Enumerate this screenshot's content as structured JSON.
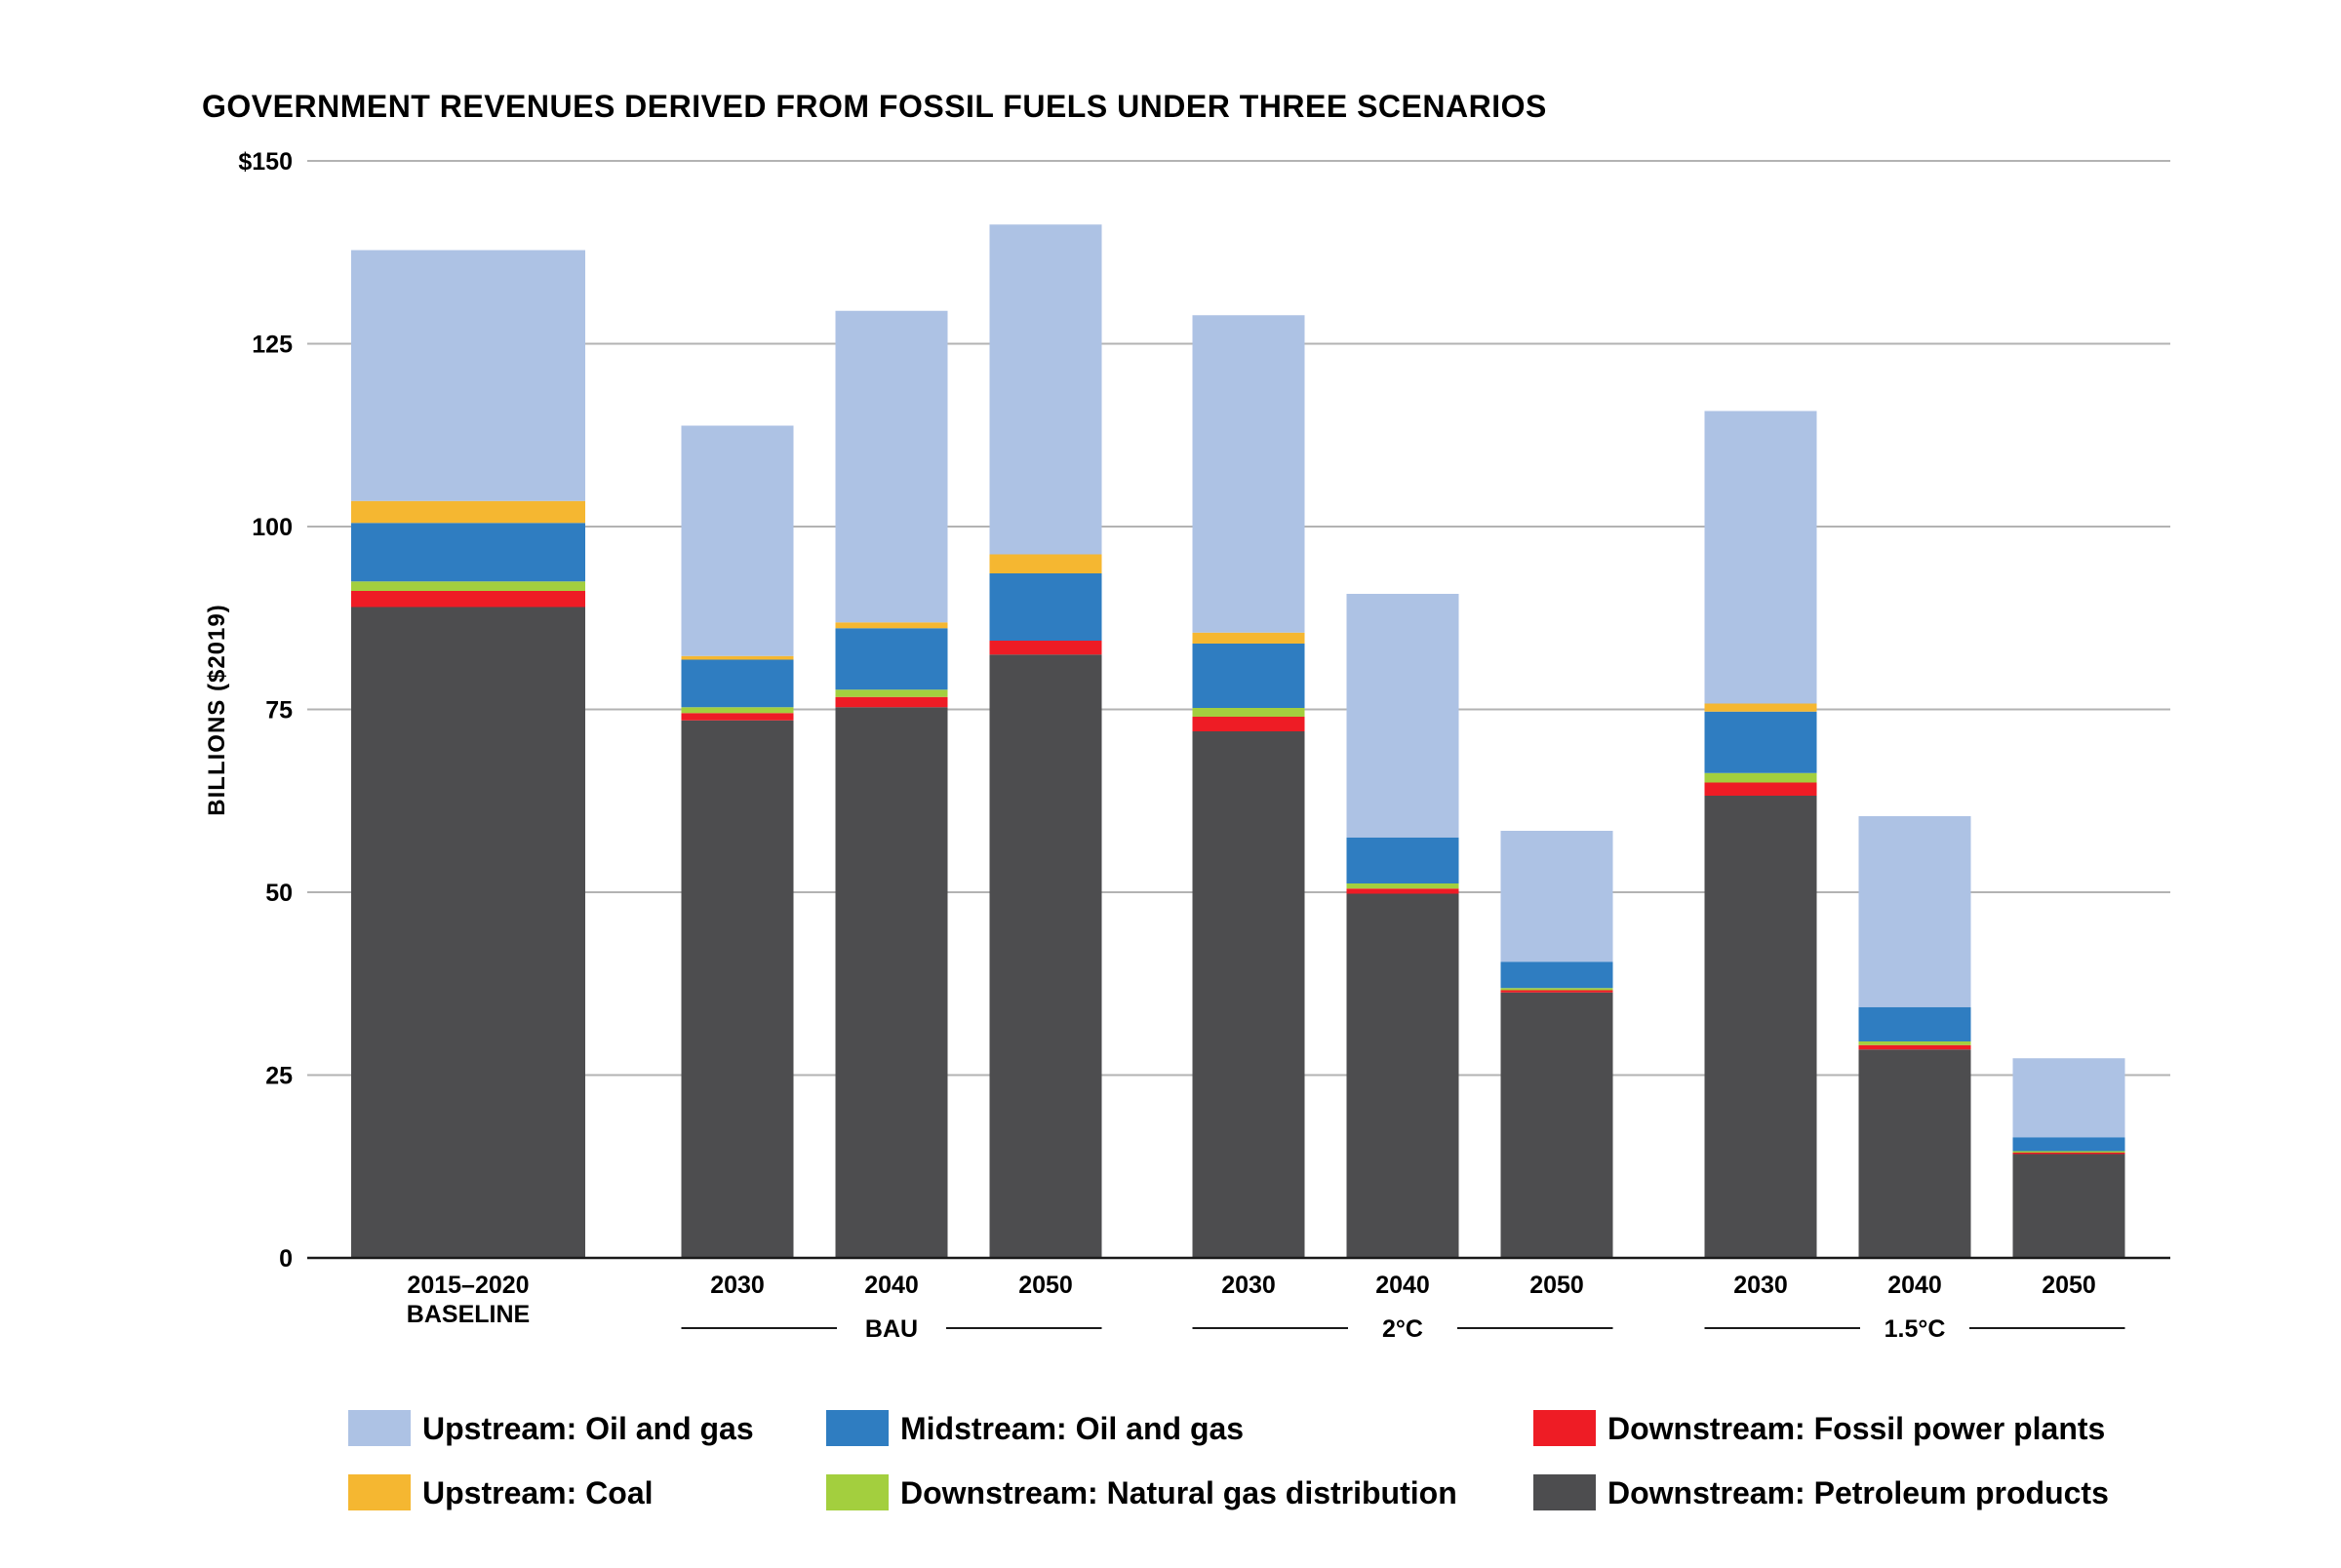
{
  "chart_data": {
    "type": "bar",
    "stacked": true,
    "title": "GOVERNMENT REVENUES DERIVED FROM FOSSIL FUELS UNDER THREE SCENARIOS",
    "ylabel": "BILLIONS ($2019)",
    "xlabel": "",
    "ylim": [
      0,
      150
    ],
    "yticks": [
      "$150",
      "125",
      "100",
      "75",
      "50",
      "25",
      "0"
    ],
    "yticks_values": [
      150,
      125,
      100,
      75,
      50,
      25,
      0
    ],
    "grid": true,
    "categories": [
      {
        "label": "2015–2020",
        "label2": "BASELINE",
        "group": ""
      },
      {
        "label": "2030",
        "label2": "",
        "group": "BAU"
      },
      {
        "label": "2040",
        "label2": "",
        "group": "BAU"
      },
      {
        "label": "2050",
        "label2": "",
        "group": "BAU"
      },
      {
        "label": "2030",
        "label2": "",
        "group": "2°C"
      },
      {
        "label": "2040",
        "label2": "",
        "group": "2°C"
      },
      {
        "label": "2050",
        "label2": "",
        "group": "2°C"
      },
      {
        "label": "2030",
        "label2": "",
        "group": "1.5°C"
      },
      {
        "label": "2040",
        "label2": "",
        "group": "1.5°C"
      },
      {
        "label": "2050",
        "label2": "",
        "group": "1.5°C"
      }
    ],
    "groups": [
      "BAU",
      "2°C",
      "1.5°C"
    ],
    "series": [
      {
        "name": "Downstream: Petroleum products",
        "color": "#4d4d4f",
        "values": [
          89.0,
          73.5,
          75.3,
          82.5,
          72.0,
          49.8,
          36.3,
          63.2,
          28.5,
          14.2
        ]
      },
      {
        "name": "Downstream: Fossil power plants",
        "color": "#ee1c25",
        "values": [
          2.2,
          1.0,
          1.4,
          1.9,
          2.0,
          0.7,
          0.3,
          1.8,
          0.6,
          0.2
        ]
      },
      {
        "name": "Downstream: Natural gas distribution",
        "color": "#a3cf3e",
        "values": [
          1.3,
          0.8,
          1.0,
          0.0,
          1.2,
          0.7,
          0.3,
          1.3,
          0.5,
          0.2
        ]
      },
      {
        "name": "Midstream: Oil and gas",
        "color": "#2f7dc1",
        "values": [
          8.0,
          6.5,
          8.4,
          9.2,
          8.8,
          6.3,
          3.6,
          8.4,
          4.7,
          1.9
        ]
      },
      {
        "name": "Upstream: Coal",
        "color": "#f5b731",
        "values": [
          3.0,
          0.5,
          0.8,
          2.6,
          1.5,
          0.0,
          0.0,
          1.1,
          0.0,
          0.0
        ]
      },
      {
        "name": "Upstream: Oil and gas",
        "color": "#adc2e4",
        "values": [
          34.3,
          31.5,
          42.6,
          45.1,
          43.4,
          33.3,
          17.9,
          40.0,
          26.1,
          10.8
        ]
      }
    ],
    "legend": [
      {
        "name": "Upstream: Oil and gas",
        "color": "#adc2e4"
      },
      {
        "name": "Midstream: Oil and gas",
        "color": "#2f7dc1"
      },
      {
        "name": "Downstream: Fossil power plants",
        "color": "#ee1c25"
      },
      {
        "name": "Upstream: Coal",
        "color": "#f5b731"
      },
      {
        "name": "Downstream: Natural gas distribution",
        "color": "#a3cf3e"
      },
      {
        "name": "Downstream: Petroleum products",
        "color": "#4d4d4f"
      }
    ],
    "legend_position": "bottom"
  }
}
